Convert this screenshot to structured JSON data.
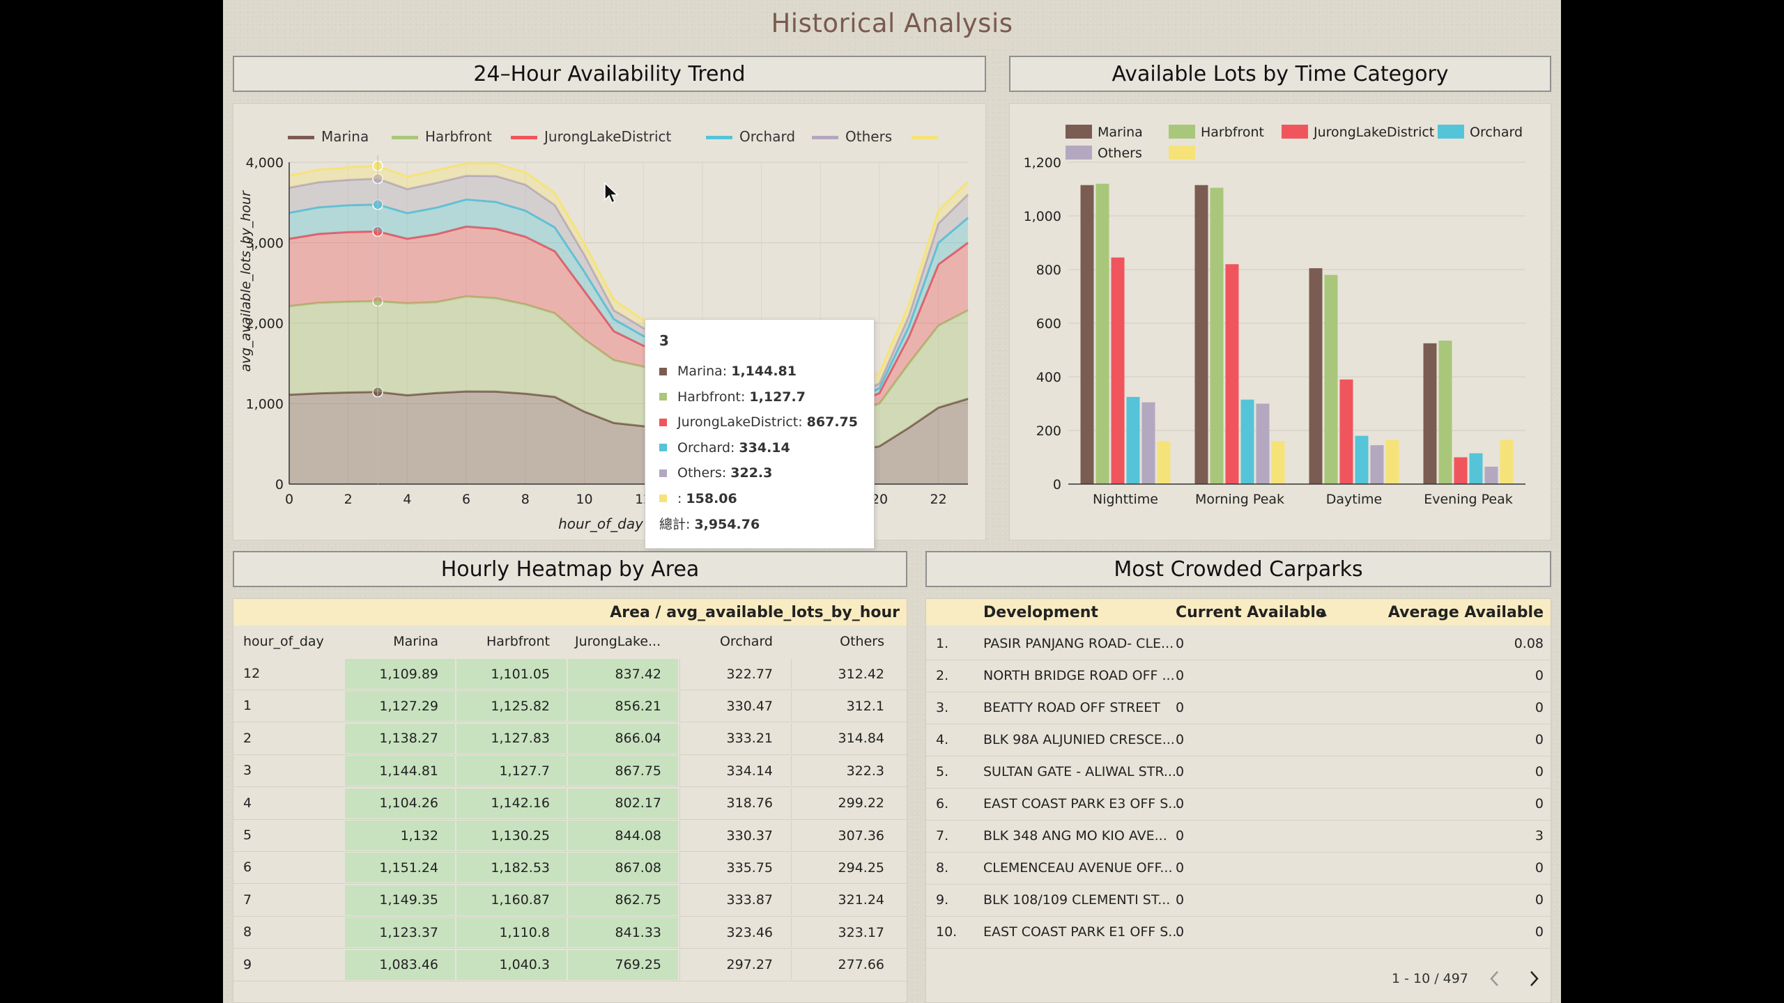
{
  "page": {
    "title": "Historical Analysis"
  },
  "colors": {
    "Marina": "#7b5c52",
    "Harbfront": "#a9c77a",
    "JurongLakeDistrict": "#f0555e",
    "Orchard": "#55c4d8",
    "Others": "#b3a8bf",
    "Blank": "#f5e37a"
  },
  "trend": {
    "header": "24–Hour Availability Trend",
    "legend": [
      "Marina",
      "Harbfront",
      "JurongLakeDistrict",
      "Orchard",
      "Others",
      ""
    ],
    "tooltip": {
      "title": "3",
      "rows": [
        {
          "label": "Marina:",
          "value": "1,144.81"
        },
        {
          "label": "Harbfront:",
          "value": "1,127.7"
        },
        {
          "label": "JurongLakeDistrict:",
          "value": "867.75"
        },
        {
          "label": "Orchard:",
          "value": "334.14"
        },
        {
          "label": "Others:",
          "value": "322.3"
        },
        {
          "label": ":",
          "value": "158.06"
        }
      ],
      "total_label": "總計:",
      "total_value": "3,954.76"
    }
  },
  "category": {
    "header": "Available Lots by Time Category",
    "legend": [
      "Marina",
      "Harbfront",
      "JurongLakeDistrict",
      "Orchard",
      "Others",
      ""
    ]
  },
  "heatmap": {
    "header": "Hourly Heatmap by Area",
    "banner": "Area / avg_available_lots_by_hour",
    "columns": [
      "hour_of_day",
      "Marina",
      "Harbfront",
      "JurongLake...",
      "Orchard",
      "Others"
    ],
    "rows": [
      [
        "12",
        "1,109.89",
        "1,101.05",
        "837.42",
        "322.77",
        "312.42"
      ],
      [
        "1",
        "1,127.29",
        "1,125.82",
        "856.21",
        "330.47",
        "312.1"
      ],
      [
        "2",
        "1,138.27",
        "1,127.83",
        "866.04",
        "333.21",
        "314.84"
      ],
      [
        "3",
        "1,144.81",
        "1,127.7",
        "867.75",
        "334.14",
        "322.3"
      ],
      [
        "4",
        "1,104.26",
        "1,142.16",
        "802.17",
        "318.76",
        "299.22"
      ],
      [
        "5",
        "1,132",
        "1,130.25",
        "844.08",
        "330.37",
        "307.36"
      ],
      [
        "6",
        "1,151.24",
        "1,182.53",
        "867.08",
        "335.75",
        "294.25"
      ],
      [
        "7",
        "1,149.35",
        "1,160.87",
        "862.75",
        "333.87",
        "321.24"
      ],
      [
        "8",
        "1,123.37",
        "1,110.8",
        "841.33",
        "323.46",
        "323.17"
      ],
      [
        "9",
        "1,083.46",
        "1,040.3",
        "769.25",
        "297.27",
        "277.66"
      ]
    ]
  },
  "crowded": {
    "header": "Most Crowded Carparks",
    "columns": [
      "Development",
      "Current Available",
      "Average Available"
    ],
    "sort_icon": "sort-ascending-icon",
    "rows": [
      [
        "1.",
        "PASIR PANJANG ROAD- CLE...",
        "0",
        "0.08"
      ],
      [
        "2.",
        "NORTH BRIDGE ROAD OFF ...",
        "0",
        "0"
      ],
      [
        "3.",
        "BEATTY ROAD OFF STREET",
        "0",
        "0"
      ],
      [
        "4.",
        "BLK 98A ALJUNIED CRESCE...",
        "0",
        "0"
      ],
      [
        "5.",
        "SULTAN GATE - ALIWAL STR...",
        "0",
        "0"
      ],
      [
        "6.",
        "EAST COAST PARK E3 OFF S...",
        "0",
        "0"
      ],
      [
        "7.",
        "BLK 348 ANG MO KIO AVE...",
        "0",
        "3"
      ],
      [
        "8.",
        "CLEMENCEAU AVENUE OFF...",
        "0",
        "0"
      ],
      [
        "9.",
        "BLK 108/109 CLEMENTI ST...",
        "0",
        "0"
      ],
      [
        "10.",
        "EAST COAST PARK E1 OFF S...",
        "0",
        "0"
      ]
    ],
    "pagination": "1 - 10 / 497"
  },
  "chart_data": [
    {
      "type": "area",
      "stacked": true,
      "xlabel": "hour_of_day",
      "ylabel": "avg_available_lots_by_hour",
      "ylim": [
        0,
        4000
      ],
      "yticks": [
        "0",
        "1,000",
        "2,000",
        "3,000",
        "4,000"
      ],
      "xticks": [
        "0",
        "2",
        "4",
        "6",
        "8",
        "10",
        "12",
        "14",
        "16",
        "18",
        "20",
        "22"
      ],
      "x": [
        0,
        1,
        2,
        3,
        4,
        5,
        6,
        7,
        8,
        9,
        10,
        11,
        12,
        13,
        14,
        15,
        16,
        17,
        18,
        19,
        20,
        21,
        22,
        23
      ],
      "grid": true,
      "legend": "top",
      "series": [
        {
          "name": "Marina",
          "values": [
            1109.89,
            1127.29,
            1138.27,
            1144.81,
            1104.26,
            1132,
            1151.24,
            1149.35,
            1123.37,
            1083.46,
            900,
            760,
            720,
            700,
            710,
            740,
            750,
            680,
            560,
            400,
            470,
            700,
            950,
            1060
          ]
        },
        {
          "name": "Harbfront",
          "values": [
            1101.05,
            1125.82,
            1127.83,
            1127.7,
            1142.16,
            1130.25,
            1182.53,
            1160.87,
            1110.8,
            1040.3,
            900,
            780,
            740,
            690,
            660,
            620,
            610,
            600,
            550,
            480,
            530,
            800,
            1020,
            1100
          ]
        },
        {
          "name": "JurongLakeDistrict",
          "values": [
            837.42,
            856.21,
            866.04,
            867.75,
            802.17,
            844.08,
            867.08,
            862.75,
            841.33,
            769.25,
            600,
            360,
            260,
            250,
            240,
            240,
            240,
            200,
            140,
            100,
            130,
            330,
            760,
            840
          ]
        },
        {
          "name": "Orchard",
          "values": [
            322.77,
            330.47,
            333.21,
            334.14,
            318.76,
            330.37,
            335.75,
            333.87,
            323.46,
            297.27,
            240,
            150,
            120,
            110,
            110,
            105,
            105,
            90,
            70,
            50,
            60,
            130,
            270,
            310
          ]
        },
        {
          "name": "Others",
          "values": [
            312.42,
            312.1,
            314.84,
            322.3,
            299.22,
            307.36,
            294.25,
            321.24,
            323.17,
            277.66,
            210,
            110,
            100,
            100,
            100,
            100,
            100,
            80,
            60,
            50,
            60,
            130,
            240,
            290
          ]
        },
        {
          "values": [
            150,
            155,
            155,
            158.06,
            155,
            155,
            155,
            155,
            155,
            150,
            140,
            130,
            100,
            100,
            100,
            100,
            110,
            120,
            130,
            140,
            130,
            140,
            160,
            160
          ]
        }
      ]
    },
    {
      "type": "bar",
      "categories": [
        "Nighttime",
        "Morning Peak",
        "Daytime",
        "Evening Peak"
      ],
      "ylim": [
        0,
        1200
      ],
      "yticks": [
        "0",
        "200",
        "400",
        "600",
        "800",
        "1,000",
        "1,200"
      ],
      "grid": true,
      "legend": "top",
      "series": [
        {
          "name": "Marina",
          "values": [
            1115,
            1115,
            805,
            525
          ]
        },
        {
          "name": "Harbfront",
          "values": [
            1120,
            1105,
            780,
            535
          ]
        },
        {
          "name": "JurongLakeDistrict",
          "values": [
            845,
            820,
            390,
            100
          ]
        },
        {
          "name": "Orchard",
          "values": [
            325,
            315,
            180,
            115
          ]
        },
        {
          "name": "Others",
          "values": [
            305,
            300,
            145,
            65
          ]
        },
        {
          "values": [
            160,
            160,
            165,
            165
          ]
        }
      ]
    }
  ]
}
